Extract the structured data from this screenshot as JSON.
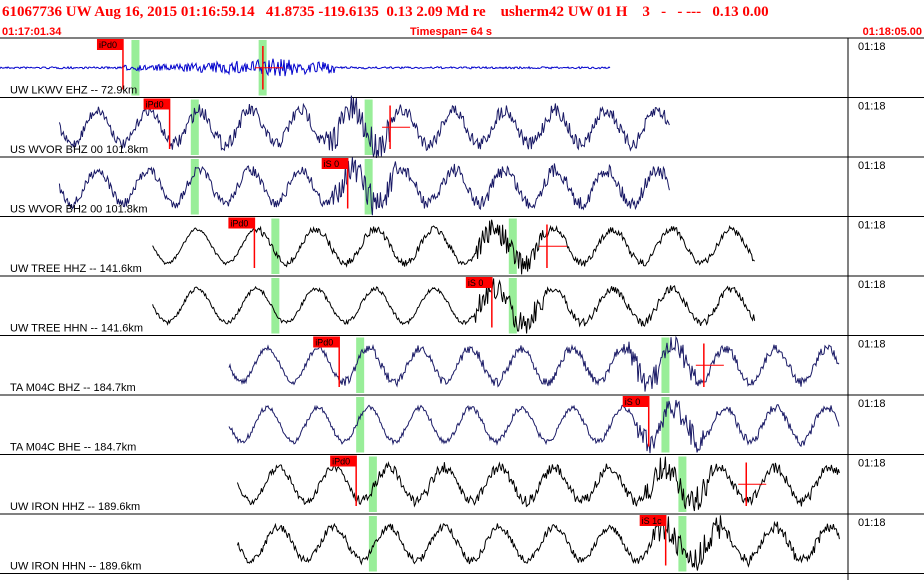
{
  "header": {
    "title": "61067736 UW Aug 16, 2015 01:16:59.14   41.8735 -119.6135  0.13 2.09 Md re    usherm42 UW 01 H    3   -   - ---   0.13 0.00",
    "start_time": "01:17:01.34",
    "timespan": "Timespan=  64 s",
    "end_time": "01:18:05.00"
  },
  "traces": [
    {
      "label": "UW LKWV EHZ -- 72.9km",
      "tick": "01:18",
      "color": "#0000cc",
      "start": 0.0,
      "end": 0.72,
      "period": 0,
      "noise": 0.15,
      "burst": 0.28,
      "pick": {
        "label": "iPd0",
        "pos": 0.145
      },
      "green": 0.155,
      "green2": 0.305,
      "redmark": 0.31
    },
    {
      "label": "US WVOR BHZ 00 101.8km",
      "tick": "01:18",
      "color": "#1a1a66",
      "start": 0.07,
      "end": 0.79,
      "period": 0.06,
      "noise": 0.2,
      "burst": 0.42,
      "pick": {
        "label": "iPd0",
        "pos": 0.2
      },
      "green": 0.225,
      "green2": 0.43,
      "redmark": 0.46
    },
    {
      "label": "US WVOR BH2 00 101.8km",
      "tick": "01:18",
      "color": "#1a1a66",
      "start": 0.07,
      "end": 0.79,
      "period": 0.06,
      "noise": 0.2,
      "burst": 0.43,
      "pick": {
        "label": "iS 0",
        "pos": 0.41
      },
      "green": 0.225,
      "green2": 0.43,
      "redmark": null
    },
    {
      "label": "UW TREE HHZ -- 141.6km",
      "tick": "01:18",
      "color": "#000000",
      "start": 0.18,
      "end": 0.89,
      "period": 0.07,
      "noise": 0.03,
      "burst": 0.6,
      "pick": {
        "label": "iPd0",
        "pos": 0.3
      },
      "green": 0.32,
      "green2": 0.6,
      "redmark": 0.645
    },
    {
      "label": "UW TREE HHN -- 141.6km",
      "tick": "01:18",
      "color": "#000000",
      "start": 0.18,
      "end": 0.89,
      "period": 0.07,
      "noise": 0.05,
      "burst": 0.6,
      "pick": {
        "label": "iS 0",
        "pos": 0.58
      },
      "green": 0.32,
      "green2": 0.6,
      "redmark": null
    },
    {
      "label": "TA M04C BHZ -- 184.7km",
      "tick": "01:18",
      "color": "#1a1a66",
      "start": 0.27,
      "end": 0.99,
      "period": 0.06,
      "noise": 0.08,
      "burst": 0.78,
      "pick": {
        "label": "iPd0",
        "pos": 0.4
      },
      "green": 0.42,
      "green2": 0.78,
      "redmark": 0.83
    },
    {
      "label": "TA M04C BHE -- 184.7km",
      "tick": "01:18",
      "color": "#1a1a66",
      "start": 0.27,
      "end": 0.99,
      "period": 0.06,
      "noise": 0.08,
      "burst": 0.79,
      "pick": {
        "label": "iS 0",
        "pos": 0.765
      },
      "green": 0.42,
      "green2": 0.78,
      "redmark": null
    },
    {
      "label": "UW IRON HHZ -- 189.6km",
      "tick": "01:18",
      "color": "#000000",
      "start": 0.28,
      "end": 0.99,
      "period": 0.065,
      "noise": 0.12,
      "burst": 0.8,
      "pick": {
        "label": "iPd0",
        "pos": 0.42
      },
      "green": 0.435,
      "green2": 0.8,
      "redmark": 0.88
    },
    {
      "label": "UW IRON HHN -- 189.6km",
      "tick": "01:18",
      "color": "#000000",
      "start": 0.28,
      "end": 0.99,
      "period": 0.065,
      "noise": 0.14,
      "burst": 0.81,
      "pick": {
        "label": "iS 1c",
        "pos": 0.785
      },
      "green": 0.435,
      "green2": 0.8,
      "redmark": null
    }
  ],
  "colors": {
    "pick": "#ff0000",
    "green_window": "#99ee99",
    "header": "#ff0000",
    "grid": "#000000"
  }
}
